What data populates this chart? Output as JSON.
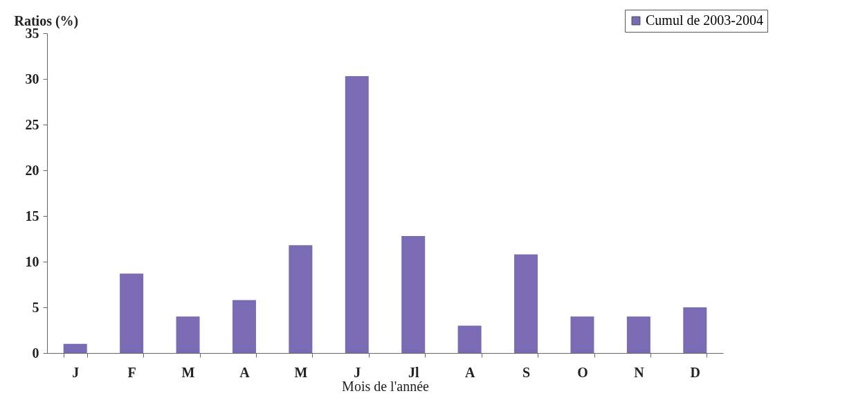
{
  "chart_data": {
    "type": "bar",
    "xlabel": "Mois de l'année",
    "ylabel": "Ratios (%)",
    "categories": [
      "J",
      "F",
      "M",
      "A",
      "M",
      "J",
      "Jl",
      "A",
      "S",
      "O",
      "N",
      "D"
    ],
    "series": [
      {
        "name": "Cumul de 2003-2004",
        "color": "#7b6bb5",
        "values": [
          1.0,
          8.7,
          4.0,
          5.8,
          11.8,
          30.3,
          12.8,
          3.0,
          10.8,
          4.0,
          4.0,
          5.0
        ]
      }
    ],
    "ylim": [
      0,
      35
    ],
    "yticks": [
      0,
      5,
      10,
      15,
      20,
      25,
      30,
      35
    ],
    "grid": false,
    "legend": "top right"
  }
}
